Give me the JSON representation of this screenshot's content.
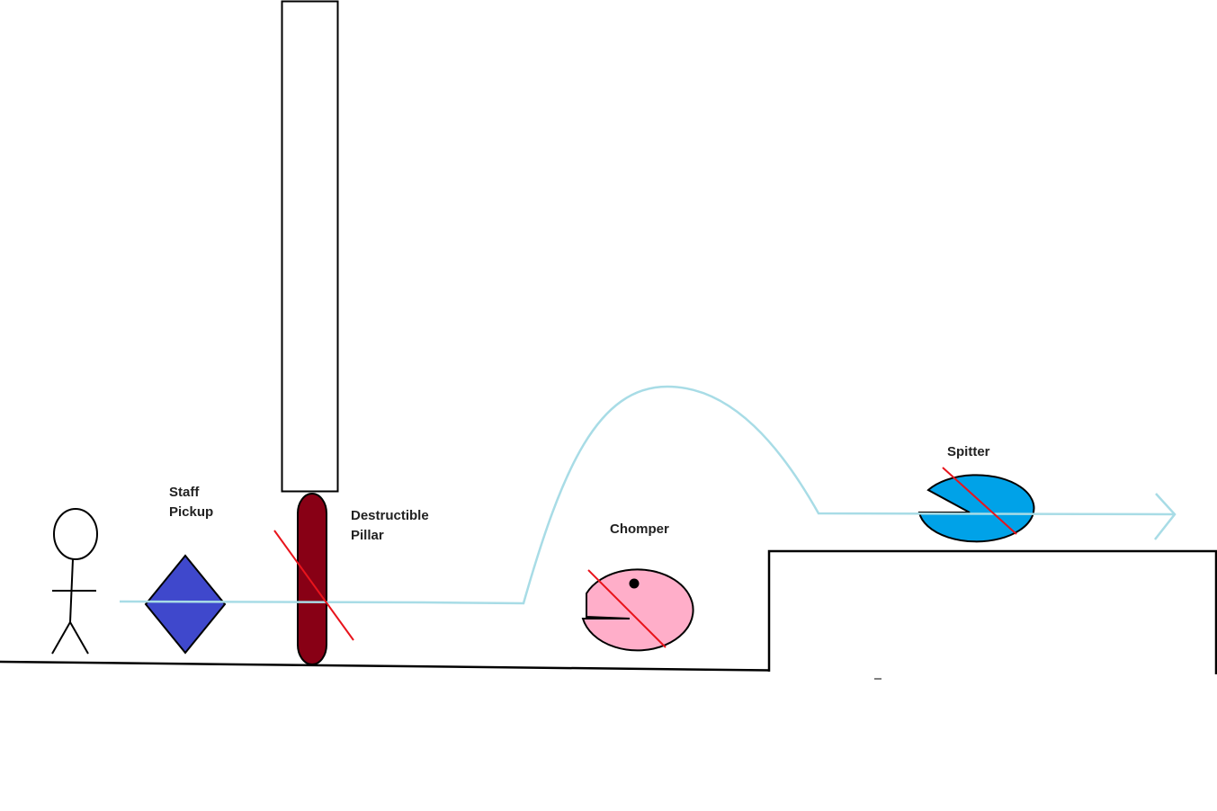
{
  "labels": {
    "staff_line1": "Staff",
    "staff_line2": "Pickup",
    "pillar_line1": "Destructible",
    "pillar_line2": "Pillar",
    "chomper": "Chomper",
    "spitter": "Spitter"
  },
  "colors": {
    "background": "#ffffff",
    "outline": "#000000",
    "player_path": "#a8dce6",
    "strike": "#e8141c",
    "staff_pickup": "#3f48cc",
    "pillar": "#880015",
    "chomper": "#ffaec9",
    "spitter": "#00a2e8"
  },
  "elements": {
    "player": "stick-figure",
    "staff_pickup": "diamond",
    "pillar": "rounded-column",
    "chomper": "pac-shaped-enemy",
    "spitter": "pac-shaped-enemy",
    "path_end": "arrowhead"
  }
}
